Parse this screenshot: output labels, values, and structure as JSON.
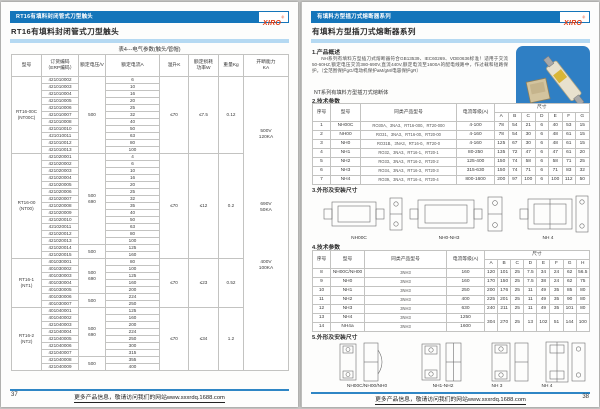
{
  "brand": {
    "logo_text": "XIRO",
    "logo_reg": "®"
  },
  "colors": {
    "bar_blue": "#1475ba",
    "light_blue_rule": "#b5d9f2",
    "logo_red": "#e03a10",
    "photo_blue": "#2f7fc4",
    "footer_line_blue": "#2f86c5"
  },
  "left_page": {
    "header_bar_title": "RT16有填料封闭管式刀型触头",
    "page_title": "RT16有填料封闭管式刀型触头",
    "table_caption": "表4---电气参数(触头/管帽)",
    "table": {
      "headers": [
        [
          "型号"
        ],
        [
          "订货编码",
          "（ERP编码）"
        ],
        [
          "额定电压/V"
        ],
        [
          "额定电流A"
        ],
        [
          "温升K"
        ],
        [
          "额定损耗",
          "功率W"
        ],
        [
          "重量Kg"
        ],
        [
          "开断能力",
          "KA"
        ]
      ],
      "groups": [
        {
          "model_line1": "RT16-00C",
          "model_line2": "(NT00C)",
          "temp_rise": "≤70",
          "rated_power": "≤7.5",
          "weight": "0.12",
          "voltage_segments": [
            {
              "span": 11,
              "lines": [
                "500"
              ]
            }
          ],
          "rows": [
            [
              "421010002",
              "6"
            ],
            [
              "421010003",
              "10"
            ],
            [
              "421010004",
              "16"
            ],
            [
              "421010005",
              "20"
            ],
            [
              "421010006",
              "25"
            ],
            [
              "421010007",
              "32"
            ],
            [
              "421010008",
              "40"
            ],
            [
              "421010010",
              "50"
            ],
            [
              "421010011",
              "63"
            ],
            [
              "421010012",
              "80"
            ],
            [
              "421010013",
              "100"
            ]
          ]
        },
        {
          "model_line1": "RT16-00",
          "model_line2": "(NT00)",
          "temp_rise": "≤70",
          "rated_power": "≤12",
          "weight": "0.2",
          "voltage_segments": [
            {
              "span": 13,
              "lines": [
                "500",
                "690"
              ]
            },
            {
              "span": 2,
              "lines": [
                "500"
              ]
            }
          ],
          "rows": [
            [
              "421020001",
              "4"
            ],
            [
              "421020002",
              "6"
            ],
            [
              "421020003",
              "10"
            ],
            [
              "421020004",
              "16"
            ],
            [
              "421020005",
              "20"
            ],
            [
              "421020006",
              "25"
            ],
            [
              "421020007",
              "32"
            ],
            [
              "421020008",
              "35"
            ],
            [
              "421020009",
              "40"
            ],
            [
              "421020010",
              "50"
            ],
            [
              "421020011",
              "63"
            ],
            [
              "421020012",
              "80"
            ],
            [
              "421020013",
              "100"
            ],
            [
              "421020014",
              "125"
            ],
            [
              "421020015",
              "160"
            ]
          ]
        },
        {
          "model_line1": "RT16-1",
          "model_line2": "(NT1)",
          "temp_rise": "≤70",
          "rated_power": "≤23",
          "weight": "0.52",
          "voltage_segments": [
            {
              "span": 5,
              "lines": [
                "500",
                "690"
              ]
            },
            {
              "span": 2,
              "lines": [
                "500"
              ]
            }
          ],
          "rows": [
            [
              "401030001",
              "80"
            ],
            [
              "401030002",
              "100"
            ],
            [
              "401030003",
              "125"
            ],
            [
              "401030004",
              "160"
            ],
            [
              "401030005",
              "200"
            ],
            [
              "401030006",
              "224"
            ],
            [
              "401030007",
              "250"
            ]
          ]
        },
        {
          "model_line1": "RT16-2",
          "model_line2": "(NT2)",
          "temp_rise": "≤70",
          "rated_power": "≤34",
          "weight": "1.2",
          "voltage_segments": [
            {
              "span": 7,
              "lines": [
                "500",
                "690"
              ]
            },
            {
              "span": 2,
              "lines": [
                "500"
              ]
            }
          ],
          "rows": [
            [
              "401040001",
              "125"
            ],
            [
              "401040002",
              "160"
            ],
            [
              "421040003",
              "200"
            ],
            [
              "421040004",
              "224"
            ],
            [
              "421040005",
              "250"
            ],
            [
              "421040006",
              "300"
            ],
            [
              "421040007",
              "315"
            ],
            [
              "421040008",
              "355"
            ],
            [
              "421040009",
              "400"
            ]
          ]
        }
      ],
      "breaking_capacity_blocks": [
        [
          "500V",
          "120KA"
        ],
        [
          "690V",
          "50KA"
        ],
        [
          "400V",
          "100KA"
        ]
      ]
    },
    "page_number": "37",
    "footer_text": "更多产品信息，敬请访问我们的网站www.sxxrdq.1688.com"
  },
  "right_page": {
    "header_bar_title": "有填料方型插刀式熔断器系列",
    "page_title": "有填料方型插刀式熔断器系列",
    "sections": {
      "s1_title": "1.产品概述",
      "s1_paragraph": "NH系列有填料方型插刀式熔断器符合GB13539、IEC60269、VDE0636标准！适用于交流50-60HZ,额定电压交流380-690V,直流440V,额定电流至1600A的配电线路中，作过载和短路保护。（全范围保护gG/电动机保护aM/gM/电容保护gR）",
      "nt_note": "NT系列有填料方型插刀式熔断体",
      "s2_title": "2.技术参数",
      "s3_title": "3.外形及安装尺寸",
      "s4_title": "4.技术参数",
      "s5_title": "5.外形及安装尺寸"
    },
    "table_a": {
      "col_headers": [
        "序号",
        "型号",
        "同类产品型号",
        "电流等级(A)"
      ],
      "dim_header": "尺寸",
      "dim_cols": [
        "A",
        "B",
        "C",
        "D",
        "E",
        "F",
        "G"
      ],
      "rows": [
        [
          "1",
          "NH00C",
          "RO30A、3NA3、RT16-000、RT20-000",
          "4-100",
          "78",
          "54",
          "21",
          "6",
          "40",
          "53",
          "15"
        ],
        [
          "2",
          "NH00",
          "RO31、3NA3、RT16-00、RT20-00",
          "4-160",
          "78",
          "54",
          "30",
          "6",
          "48",
          "61",
          "15"
        ],
        [
          "3",
          "NH0",
          "RO31B、3NA3、RT16-0、RT20-0",
          "4-160",
          "125",
          "67",
          "30",
          "6",
          "48",
          "61",
          "15"
        ],
        [
          "4",
          "NH1",
          "RO32、3NA3、RT16-1、RT20-1",
          "80-250",
          "135",
          "72",
          "47",
          "6",
          "47",
          "61",
          "20"
        ],
        [
          "5",
          "NH2",
          "RO33、3NA3、RT16-2、RT20-2",
          "125-400",
          "150",
          "74",
          "58",
          "6",
          "58",
          "71",
          "25"
        ],
        [
          "6",
          "NH3",
          "RO34、3NA3、RT16-3、RT20-3",
          "315-630",
          "150",
          "74",
          "71",
          "6",
          "71",
          "83",
          "32"
        ],
        [
          "7",
          "NH4",
          "RO39、3NA3、RT16-4、RT20-4",
          "800-1600",
          "200",
          "97",
          "100",
          "6",
          "100",
          "112",
          "50"
        ]
      ]
    },
    "drawing_labels_3": [
      "NH00C",
      "NH0-NH3",
      "NH 4"
    ],
    "table_b": {
      "col_headers": [
        "序号",
        "型号",
        "同类产品型号",
        "电流等级(A)"
      ],
      "dim_header": "尺寸",
      "dim_cols": [
        "A",
        "B",
        "C",
        "D",
        "E",
        "F",
        "G",
        "H"
      ],
      "rows": [
        [
          "8",
          "NH00C/NH00",
          "3NH3",
          "160",
          "120",
          "101",
          "25",
          "7.5",
          "34",
          "24",
          "62",
          "56.5"
        ],
        [
          "9",
          "NH0",
          "3NH3",
          "160",
          "170",
          "150",
          "25",
          "7.5",
          "38",
          "24",
          "62",
          "75"
        ],
        [
          "10",
          "NH1",
          "3NH3",
          "250",
          "200",
          "176",
          "25",
          "11",
          "49",
          "35",
          "85",
          "80"
        ],
        [
          "11",
          "NH2",
          "3NH3",
          "400",
          "225",
          "201",
          "25",
          "11",
          "49",
          "35",
          "90",
          "80"
        ],
        [
          "12",
          "NH3",
          "3NH3",
          "630",
          "240",
          "211",
          "25",
          "11",
          "49",
          "35",
          "101",
          "80"
        ],
        [
          "13",
          "NH4",
          "3NH3",
          "1250",
          "304",
          "270",
          "25",
          "13",
          "102",
          "51",
          "144",
          "100"
        ],
        [
          "14",
          "NH4a",
          "3NH3",
          "1600"
        ]
      ]
    },
    "drawing_labels_5": [
      "NH00C/NH00/NH0",
      "NH1-NH2",
      "NH 3",
      "NH 4"
    ],
    "page_number": "38",
    "footer_text": "更多产品信息，敬请访问我们的网站www.sxxrdq.1688.com"
  }
}
